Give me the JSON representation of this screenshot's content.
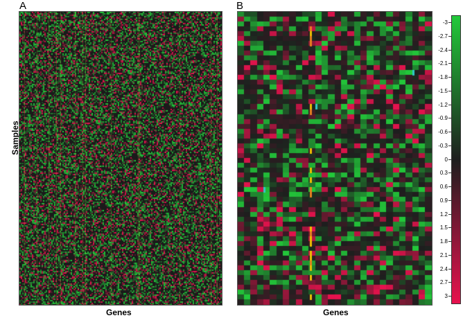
{
  "chart_data": [
    {
      "type": "heatmap",
      "panel_label": "A",
      "xlabel": "Genes",
      "ylabel": "Samples",
      "color_scale": "green-black-red",
      "grid": false
    },
    {
      "type": "heatmap",
      "panel_label": "B",
      "xlabel": "Genes",
      "ylabel": "",
      "color_scale": "green-black-red",
      "grid": false
    }
  ],
  "colorbar": {
    "ticks": [
      "-3",
      "-2.7",
      "-2.4",
      "-2.1",
      "-1.8",
      "-1.5",
      "-1.2",
      "-0.9",
      "-0.6",
      "-0.3",
      "0",
      "0.3",
      "0.6",
      "0.9",
      "1.2",
      "1.5",
      "1.8",
      "2.1",
      "2.4",
      "2.7",
      "3"
    ],
    "range": [
      -3,
      3
    ],
    "low_color": "#22c93a",
    "mid_color": "#1e1e1e",
    "high_color": "#e8124e"
  }
}
